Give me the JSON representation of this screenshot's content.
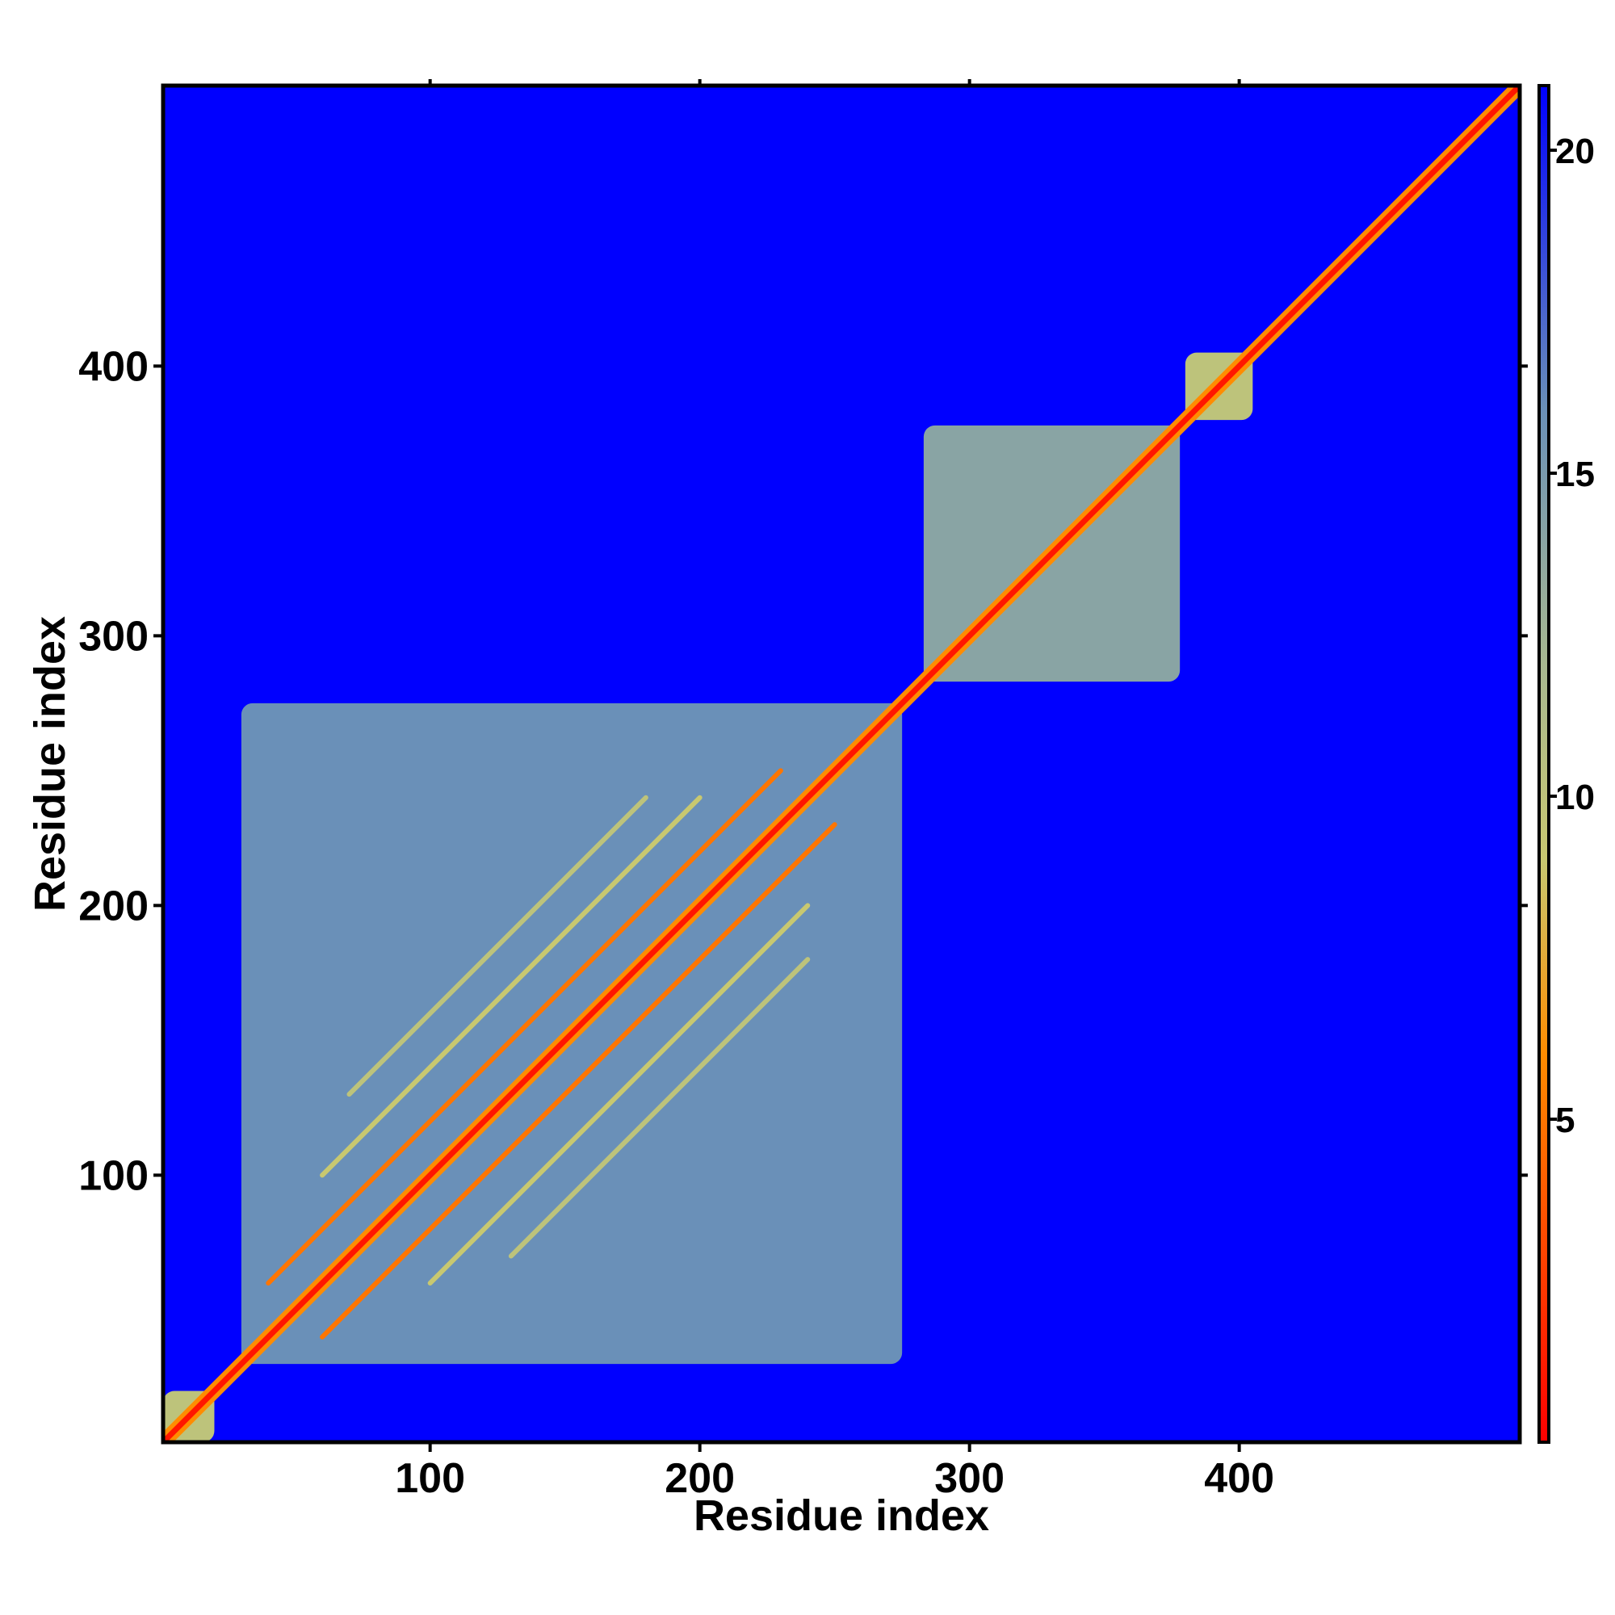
{
  "chart_data": {
    "type": "heatmap",
    "title": "",
    "xlabel": "Residue index",
    "ylabel": "Residue index",
    "xlim": [
      1,
      504
    ],
    "ylim": [
      1,
      504
    ],
    "x_ticks": [
      100,
      200,
      300,
      400
    ],
    "y_ticks": [
      100,
      200,
      300,
      400
    ],
    "grid": false,
    "legend": "colorbar at right",
    "colorbar": {
      "range": [
        0,
        21
      ],
      "ticks": [
        5,
        10,
        15,
        20
      ],
      "stops": [
        {
          "value": 0,
          "color": "#ff0000"
        },
        {
          "value": 6,
          "color": "#ff8c00"
        },
        {
          "value": 9,
          "color": "#c8c870"
        },
        {
          "value": 12,
          "color": "#a8b890"
        },
        {
          "value": 16,
          "color": "#6a90b8"
        },
        {
          "value": 21,
          "color": "#0000ff"
        }
      ]
    },
    "background_color": "#0000ff",
    "domains": [
      {
        "name": "",
        "start": 30,
        "end": 275,
        "mean_distance": 16
      },
      {
        "name": "",
        "start": 283,
        "end": 378,
        "mean_distance": 14
      },
      {
        "name": "",
        "start": 380,
        "end": 405,
        "mean_distance": 10
      },
      {
        "name": "",
        "start": 1,
        "end": 20,
        "mean_distance": 10
      }
    ],
    "diagonal_distance": 1,
    "contact_bands": [
      {
        "offset": 20,
        "start": 40,
        "end": 230,
        "distance": 5
      },
      {
        "offset": 40,
        "start": 60,
        "end": 200,
        "distance": 9
      },
      {
        "offset": 60,
        "start": 70,
        "end": 180,
        "distance": 10
      }
    ]
  }
}
